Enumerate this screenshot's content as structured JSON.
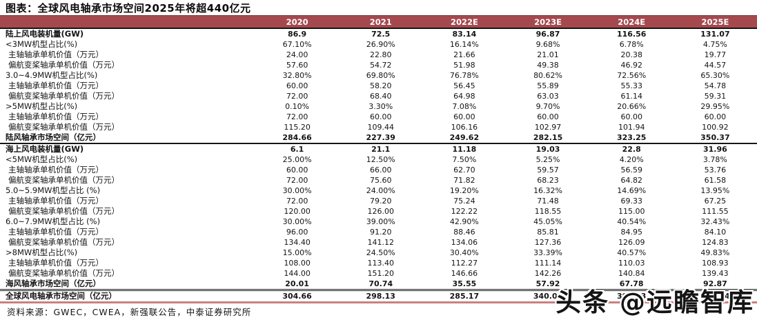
{
  "title": "图表：全球风电轴承市场空间2025年将超440亿元",
  "colors": {
    "header_bg": "#A5494E",
    "header_text": "#FFFFFF",
    "section_rule": "#161616",
    "bottom_rule": "#C9807F"
  },
  "table": {
    "columns": [
      "2020",
      "2021",
      "2022E",
      "2023E",
      "2024E",
      "2025E"
    ],
    "rows": [
      {
        "label": "陆上风电装机量(GW)",
        "bold": true,
        "indent": false,
        "rule": "none",
        "values": [
          "86.9",
          "72.5",
          "83.14",
          "96.87",
          "116.56",
          "131.07"
        ]
      },
      {
        "label": "<3MW机型占比(%)",
        "bold": false,
        "indent": false,
        "rule": "none",
        "values": [
          "67.10%",
          "26.90%",
          "16.14%",
          "9.68%",
          "6.78%",
          "4.75%"
        ]
      },
      {
        "label": "主轴轴承单机价值（万元）",
        "bold": false,
        "indent": true,
        "rule": "none",
        "values": [
          "24.00",
          "22.80",
          "21.66",
          "21.01",
          "20.38",
          "19.77"
        ]
      },
      {
        "label": "偏航变桨轴承单机价值（万元）",
        "bold": false,
        "indent": true,
        "rule": "none",
        "values": [
          "57.60",
          "54.72",
          "51.98",
          "49.38",
          "46.92",
          "44.57"
        ]
      },
      {
        "label": "3.0~4.9MW机型占比(%)",
        "bold": false,
        "indent": false,
        "rule": "none",
        "values": [
          "32.80%",
          "69.80%",
          "76.78%",
          "80.62%",
          "72.56%",
          "65.30%"
        ]
      },
      {
        "label": "主轴轴承单机价值（万元）",
        "bold": false,
        "indent": true,
        "rule": "none",
        "values": [
          "60.00",
          "58.20",
          "56.45",
          "55.89",
          "55.33",
          "54.78"
        ]
      },
      {
        "label": "偏航变桨轴承单机价值（万元）",
        "bold": false,
        "indent": true,
        "rule": "none",
        "values": [
          "72.00",
          "68.40",
          "64.98",
          "63.03",
          "61.14",
          "59.31"
        ]
      },
      {
        "label": ">5MW机型占比(%)",
        "bold": false,
        "indent": false,
        "rule": "none",
        "values": [
          "0.10%",
          "3.30%",
          "7.08%",
          "9.70%",
          "20.66%",
          "29.95%"
        ]
      },
      {
        "label": "主轴轴承单机价值（万元）",
        "bold": false,
        "indent": true,
        "rule": "none",
        "values": [
          "72.00",
          "60.00",
          "60.00",
          "60.00",
          "60.00",
          "60.00"
        ]
      },
      {
        "label": "偏航变桨轴承单机价值（万元）",
        "bold": false,
        "indent": true,
        "rule": "none",
        "values": [
          "115.20",
          "109.44",
          "106.16",
          "102.97",
          "101.94",
          "100.92"
        ]
      },
      {
        "label": "陆风轴承市场空间（亿元）",
        "bold": true,
        "indent": false,
        "rule": "black",
        "values": [
          "284.66",
          "227.39",
          "249.62",
          "282.15",
          "323.25",
          "350.37"
        ]
      },
      {
        "label": "海上风电装机量(GW)",
        "bold": true,
        "indent": false,
        "rule": "none",
        "values": [
          "6.1",
          "21.1",
          "11.18",
          "19.03",
          "22.8",
          "31.96"
        ]
      },
      {
        "label": "<5MW机型占比(%)",
        "bold": false,
        "indent": false,
        "rule": "none",
        "values": [
          "25.00%",
          "12.50%",
          "7.50%",
          "5.25%",
          "4.20%",
          "3.78%"
        ]
      },
      {
        "label": "主轴轴承单机价值（万元）",
        "bold": false,
        "indent": true,
        "rule": "none",
        "values": [
          "60.00",
          "66.00",
          "62.70",
          "59.57",
          "56.59",
          "53.76"
        ]
      },
      {
        "label": "偏航变桨轴承单机价值（万元）",
        "bold": false,
        "indent": true,
        "rule": "none",
        "values": [
          "72.00",
          "75.60",
          "71.82",
          "68.23",
          "64.82",
          "61.58"
        ]
      },
      {
        "label": "5.0~5.9MW机型占比 (%)",
        "bold": false,
        "indent": false,
        "rule": "none",
        "values": [
          "30.00%",
          "24.00%",
          "19.20%",
          "16.32%",
          "14.69%",
          "13.95%"
        ]
      },
      {
        "label": "主轴轴承单机价值（万元）",
        "bold": false,
        "indent": true,
        "rule": "none",
        "values": [
          "72.00",
          "79.20",
          "75.24",
          "71.48",
          "69.33",
          "67.25"
        ]
      },
      {
        "label": "偏航变桨轴承单机价值（万元）",
        "bold": false,
        "indent": true,
        "rule": "none",
        "values": [
          "120.00",
          "126.00",
          "122.22",
          "118.55",
          "115.00",
          "111.55"
        ]
      },
      {
        "label": "6.0~7.9MW机型占比 (%)",
        "bold": false,
        "indent": false,
        "rule": "none",
        "values": [
          "30.00%",
          "39.00%",
          "42.90%",
          "45.05%",
          "40.54%",
          "32.43%"
        ]
      },
      {
        "label": "主轴轴承单机价值（万元）",
        "bold": false,
        "indent": true,
        "rule": "none",
        "values": [
          "96.00",
          "91.20",
          "88.46",
          "85.81",
          "84.95",
          "84.10"
        ]
      },
      {
        "label": "偏航变桨轴承单机价值（万元）",
        "bold": false,
        "indent": true,
        "rule": "none",
        "values": [
          "134.40",
          "141.12",
          "134.06",
          "127.36",
          "126.09",
          "124.83"
        ]
      },
      {
        "label": ">8MW机型占比(%)",
        "bold": false,
        "indent": false,
        "rule": "none",
        "values": [
          "15.00%",
          "24.50%",
          "30.40%",
          "33.39%",
          "40.57%",
          "49.83%"
        ]
      },
      {
        "label": "主轴轴承单机价值（万元）",
        "bold": false,
        "indent": true,
        "rule": "none",
        "values": [
          "108.00",
          "113.40",
          "112.27",
          "111.14",
          "110.03",
          "108.93"
        ]
      },
      {
        "label": "偏航变桨轴承单机价值（万元）",
        "bold": false,
        "indent": true,
        "rule": "none",
        "values": [
          "144.00",
          "151.20",
          "146.66",
          "142.26",
          "140.84",
          "139.43"
        ]
      },
      {
        "label": "海风轴承市场空间（亿元）",
        "bold": true,
        "indent": false,
        "rule": "double",
        "values": [
          "20.01",
          "70.74",
          "35.55",
          "57.92",
          "67.78",
          "92.87"
        ]
      },
      {
        "label": "全球风电轴承市场空间（亿元）",
        "bold": true,
        "indent": false,
        "rule": "red",
        "values": [
          "304.66",
          "298.13",
          "285.17",
          "340.06",
          "391.03",
          "443.24"
        ]
      }
    ]
  },
  "footer": {
    "source": "资料来源：GWEC，CWEA，新强联公告，中泰证券研究所"
  },
  "watermark": {
    "text": "头条 @远瞻智库"
  }
}
